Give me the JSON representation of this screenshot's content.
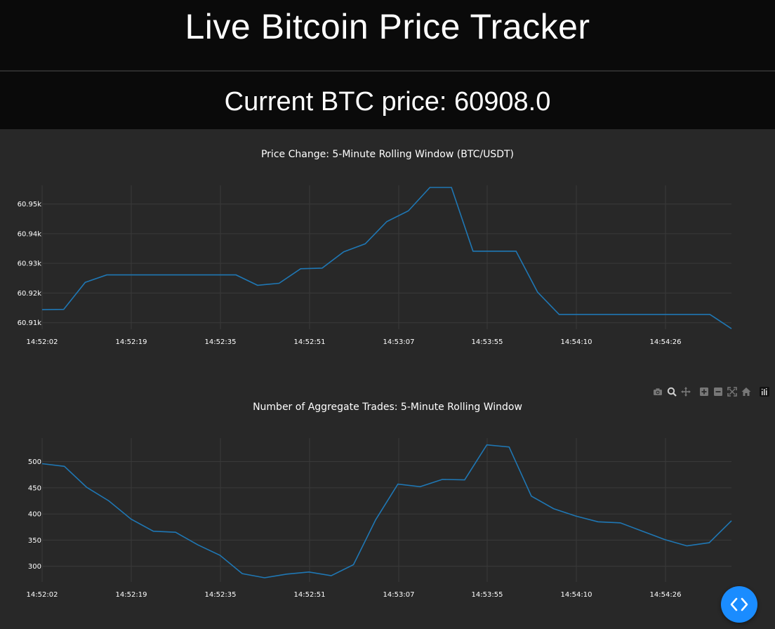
{
  "header": {
    "title": "Live Bitcoin Price Tracker"
  },
  "price": {
    "text": "Current BTC price: 60908.0"
  },
  "modebar": {
    "icons": [
      "camera-icon",
      "zoom-icon",
      "pan-icon",
      "zoom-in-icon",
      "zoom-out-icon",
      "autoscale-icon",
      "reset-axes-icon",
      "plotly-logo-icon"
    ]
  },
  "colors": {
    "line": "#1f77b4",
    "background": "#282828",
    "header_bg": "#0a0a0a",
    "fab": "#1a8cff"
  },
  "fab": {
    "icon": "code-brackets-icon"
  },
  "chart_data": [
    {
      "type": "line",
      "title": "Price Change: 5-Minute Rolling Window (BTC/USDT)",
      "xlabel": "",
      "ylabel": "",
      "x_tick_labels": [
        "14:52:02",
        "14:52:19",
        "14:52:35",
        "14:52:51",
        "14:53:07",
        "14:53:55",
        "14:54:10",
        "14:54:26"
      ],
      "y_ticks": [
        60910,
        60920,
        60930,
        60940,
        60950
      ],
      "y_tick_labels": [
        "60.91k",
        "60.92k",
        "60.93k",
        "60.94k",
        "60.95k"
      ],
      "ylim": [
        60907.8,
        60956.3
      ],
      "grid": true,
      "values": [
        60914.4,
        60914.5,
        60923.6,
        60926.1,
        60926.1,
        60926.1,
        60926.1,
        60926.1,
        60926.1,
        60926.1,
        60922.6,
        60923.3,
        60928.2,
        60928.4,
        60933.9,
        60936.6,
        60944.1,
        60947.7,
        60955.6,
        60955.6,
        60934.1,
        60934.1,
        60934.1,
        60920.3,
        60912.8,
        60912.8,
        60912.8,
        60912.8,
        60912.8,
        60912.8,
        60912.8,
        60912.8,
        60908.0
      ]
    },
    {
      "type": "line",
      "title": "Number of Aggregate Trades: 5-Minute Rolling Window",
      "xlabel": "",
      "ylabel": "",
      "x_tick_labels": [
        "14:52:02",
        "14:52:19",
        "14:52:35",
        "14:52:51",
        "14:53:07",
        "14:53:55",
        "14:54:10",
        "14:54:26"
      ],
      "y_ticks": [
        300,
        350,
        400,
        450,
        500
      ],
      "y_tick_labels": [
        "300",
        "350",
        "400",
        "450",
        "500"
      ],
      "ylim": [
        270,
        545
      ],
      "grid": true,
      "values": [
        496,
        491,
        451,
        425,
        390,
        367,
        365,
        341,
        321,
        286,
        278,
        285,
        289,
        282,
        303,
        389,
        457,
        452,
        466,
        465,
        532,
        528,
        434,
        410,
        396,
        385,
        383,
        367,
        351,
        339,
        345,
        387
      ]
    }
  ]
}
